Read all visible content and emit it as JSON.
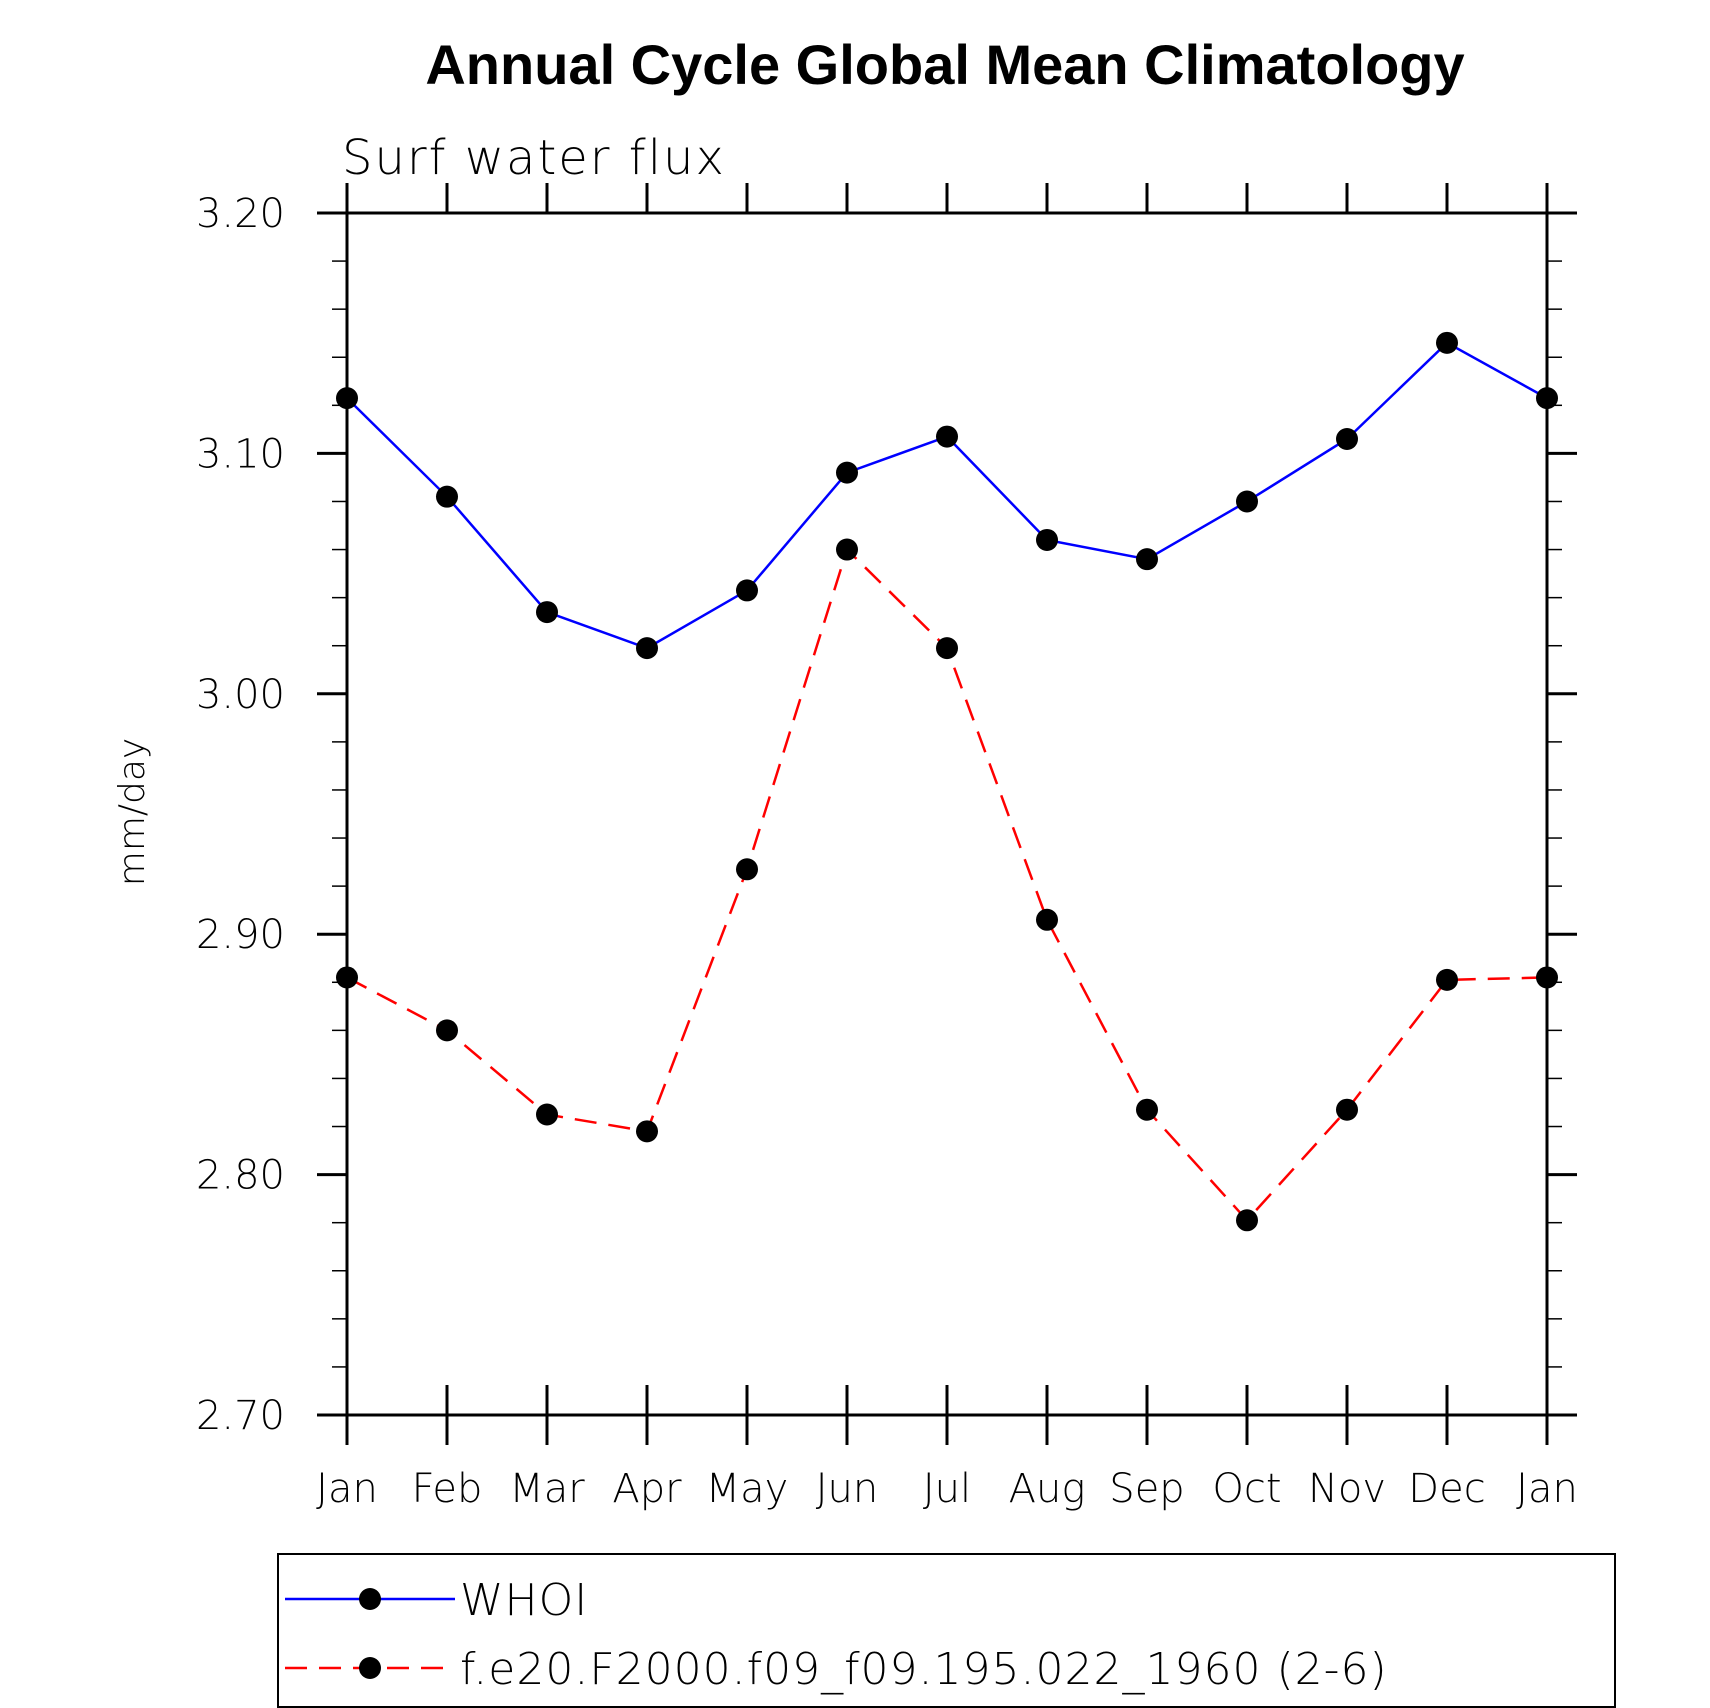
{
  "chart_data": {
    "type": "line",
    "title": "Annual Cycle Global Mean Climatology",
    "subtitle": "Surf water flux",
    "ylabel": "mm/day",
    "xlabel": "",
    "categories": [
      "Jan",
      "Feb",
      "Mar",
      "Apr",
      "May",
      "Jun",
      "Jul",
      "Aug",
      "Sep",
      "Oct",
      "Nov",
      "Dec",
      "Jan"
    ],
    "ylim": [
      2.7,
      3.2
    ],
    "yticks": [
      "3.20",
      "3.10",
      "3.00",
      "2.90",
      "2.80",
      "2.70"
    ],
    "grid": false,
    "legend_position": "bottom",
    "series": [
      {
        "name": "WHOI",
        "color": "#0000ff",
        "line_style": "solid",
        "marker": "filled-circle",
        "values": [
          3.123,
          3.082,
          3.034,
          3.019,
          3.043,
          3.092,
          3.107,
          3.064,
          3.056,
          3.08,
          3.106,
          3.146,
          3.123
        ]
      },
      {
        "name": "f.e20.F2000.f09_f09.195.022_1960 (2-6)",
        "color": "#ff0000",
        "line_style": "dashed",
        "marker": "filled-circle",
        "values": [
          2.882,
          2.86,
          2.825,
          2.818,
          2.927,
          3.06,
          3.019,
          2.906,
          2.827,
          2.781,
          2.827,
          2.881,
          2.882
        ]
      }
    ]
  }
}
